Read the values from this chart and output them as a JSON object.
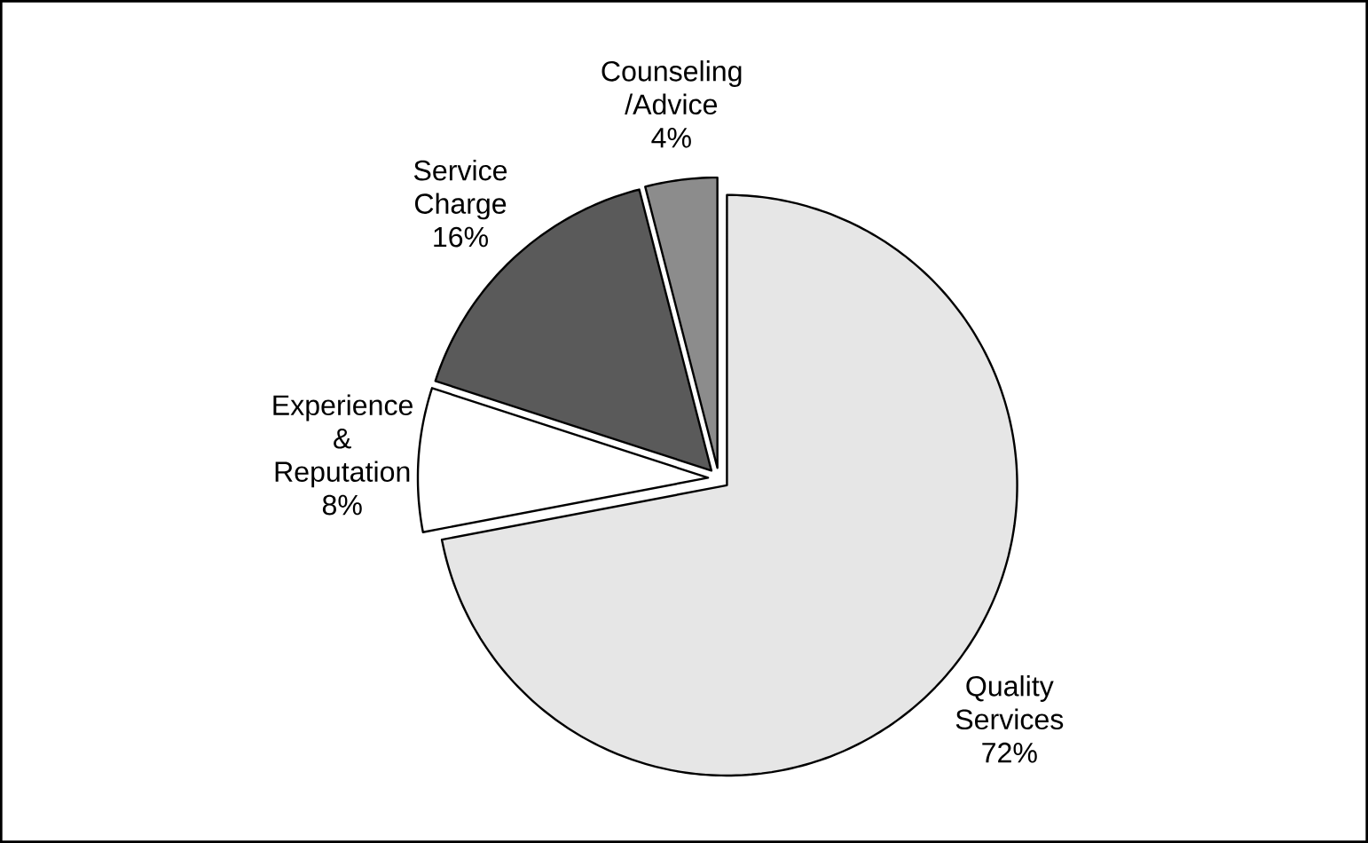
{
  "chart_data": {
    "type": "pie",
    "categories": [
      "Quality Services",
      "Experience & Reputation",
      "Service Charge",
      "Counseling /Advice"
    ],
    "values": [
      72,
      8,
      16,
      4
    ],
    "value_labels": [
      "72%",
      "8%",
      "16%",
      "4%"
    ],
    "colors": [
      "#e6e6e6",
      "#ffffff",
      "#5a5a5a",
      "#8c8c8c"
    ]
  }
}
